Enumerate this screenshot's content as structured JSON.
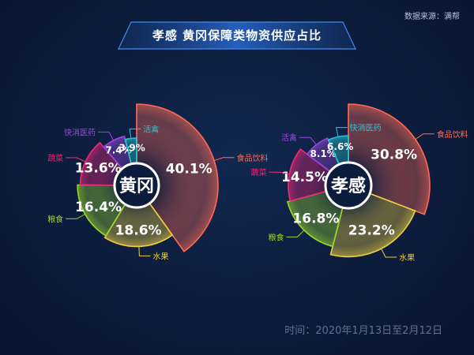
{
  "source": "数据来源：满帮",
  "title": "孝感 黄冈保障类物资供应占比",
  "footer": "时间：2020年1月13日至2月12日",
  "chart_data": [
    {
      "type": "pie",
      "center_label": "黄冈",
      "categories": [
        "食品饮料",
        "水果",
        "粮食",
        "蔬菜",
        "快消医药",
        "活禽"
      ],
      "values": [
        40.1,
        18.6,
        16.4,
        13.6,
        7.4,
        3.9
      ],
      "value_labels": [
        "40.1%",
        "18.6%",
        "16.4%",
        "13.6%",
        "7.4%",
        "3.9%"
      ],
      "colors": [
        "#ff6a55",
        "#f0d040",
        "#9ad62e",
        "#f0287a",
        "#9d48e0",
        "#24c6d4"
      ],
      "legend": "callout labels"
    },
    {
      "type": "pie",
      "center_label": "孝感",
      "categories": [
        "食品饮料",
        "水果",
        "粮食",
        "蔬菜",
        "活禽",
        "快消医药"
      ],
      "values": [
        30.8,
        23.2,
        16.8,
        14.5,
        8.1,
        6.6
      ],
      "value_labels": [
        "30.8%",
        "23.2%",
        "16.8%",
        "14.5%",
        "8.1%",
        "6.6%"
      ],
      "colors": [
        "#ff6a55",
        "#f0d040",
        "#9ad62e",
        "#f0287a",
        "#9d48e0",
        "#24c6d4"
      ],
      "legend": "callout labels"
    }
  ]
}
